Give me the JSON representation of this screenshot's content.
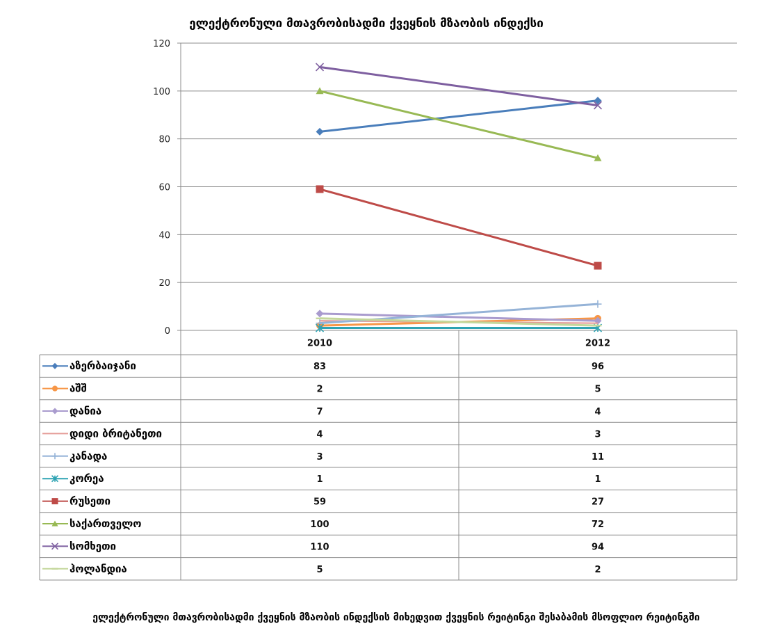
{
  "chart_data": {
    "type": "line",
    "title": "ელექტრონული მთავრობისადმი ქვეყნის მზაობის ინდექსი",
    "categories": [
      "2010",
      "2012"
    ],
    "ylim": [
      0,
      120
    ],
    "y_ticks": [
      0,
      20,
      40,
      60,
      80,
      100,
      120
    ],
    "grid": true,
    "legend_placement": "data-table",
    "series": [
      {
        "name": "აზერბაიჯანი",
        "values": [
          83,
          96
        ],
        "color": "#4A7EBB",
        "marker": "diamond"
      },
      {
        "name": "აშშ",
        "values": [
          2,
          5
        ],
        "color": "#F79646",
        "marker": "circle"
      },
      {
        "name": "დანია",
        "values": [
          7,
          4
        ],
        "color": "#A99BCE",
        "marker": "diamond"
      },
      {
        "name": "დიდი ბრიტანეთი",
        "values": [
          4,
          3
        ],
        "color": "#E59C98",
        "marker": "none"
      },
      {
        "name": "კანადა",
        "values": [
          3,
          11
        ],
        "color": "#95B3D7",
        "marker": "plus"
      },
      {
        "name": "კორეა",
        "values": [
          1,
          1
        ],
        "color": "#2EA3B3",
        "marker": "star"
      },
      {
        "name": "რუსეთი",
        "values": [
          59,
          27
        ],
        "color": "#BE4B48",
        "marker": "square"
      },
      {
        "name": "საქართველო",
        "values": [
          100,
          72
        ],
        "color": "#98B954",
        "marker": "triangle"
      },
      {
        "name": "სომხეთი",
        "values": [
          110,
          94
        ],
        "color": "#7E5FA0",
        "marker": "x"
      },
      {
        "name": "ჰოლანდია",
        "values": [
          5,
          2
        ],
        "color": "#C4D79B",
        "marker": "dash"
      }
    ]
  },
  "caption": "ელექტრონული მთავრობისადმი ქვეყნის მზაობის ინდექსის მიხედვით ქვეყნის რეიტინგი შესაბამის მსოფლიო რეიტინგში"
}
